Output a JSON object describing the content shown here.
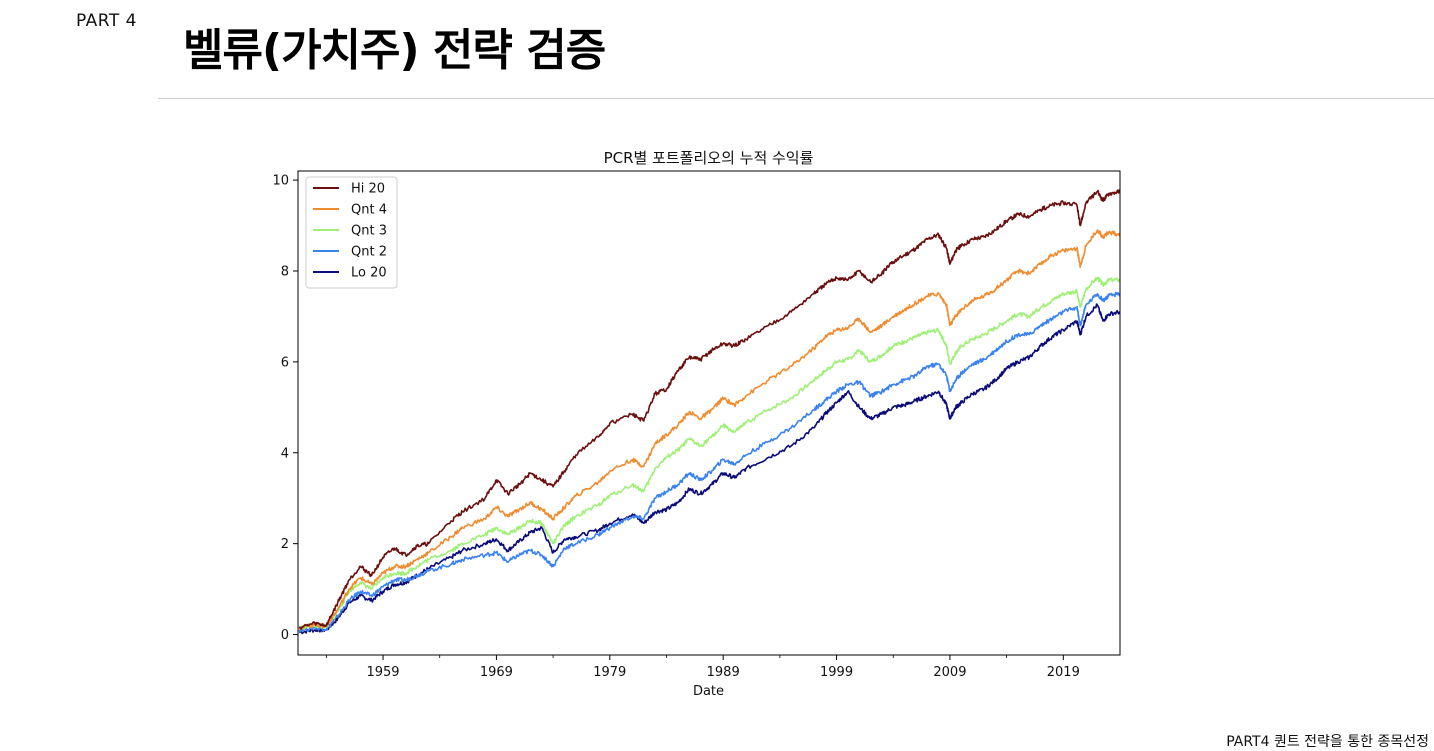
{
  "header": {
    "part": "PART 4",
    "title": "벨류(가치주) 전략 검증"
  },
  "footer": {
    "text": "PART4 퀀트 전략을 통한 종목선정"
  },
  "chart_data": {
    "type": "line",
    "title": "PCR별 포트폴리오의 누적 수익률",
    "xlabel": "Date",
    "ylabel": "",
    "xlim": [
      1951.5,
      2024.0
    ],
    "ylim": [
      -0.45,
      10.2
    ],
    "xticks": [
      "1959",
      "1969",
      "1979",
      "1989",
      "1999",
      "2009",
      "2019"
    ],
    "yticks": [
      "0",
      "2",
      "4",
      "6",
      "8",
      "10"
    ],
    "legend_position": "top-left",
    "grid": false,
    "series": [
      {
        "name": "Hi 20",
        "color": "#6b0e0e",
        "x": [
          1951.6,
          1953,
          1954,
          1955,
          1956,
          1957,
          1958,
          1959,
          1960,
          1961,
          1962,
          1963,
          1965,
          1966,
          1968,
          1969,
          1970,
          1971,
          1972,
          1973,
          1974,
          1975,
          1976,
          1978,
          1979,
          1981,
          1982,
          1983,
          1984,
          1985,
          1986,
          1987,
          1988,
          1989,
          1990,
          1991,
          1993,
          1995,
          1997,
          1998,
          1999,
          2000,
          2001,
          2002,
          2003,
          2004,
          2005,
          2006,
          2007,
          2008,
          2008.7,
          2009,
          2009.5,
          2010,
          2011,
          2012,
          2013,
          2014,
          2015,
          2016,
          2017,
          2018,
          2019,
          2020.2,
          2020.5,
          2021,
          2022,
          2022.5,
          2023,
          2024
        ],
        "values": [
          0.15,
          0.25,
          0.2,
          0.7,
          1.2,
          1.5,
          1.3,
          1.7,
          1.9,
          1.75,
          1.95,
          2.0,
          2.5,
          2.7,
          3.0,
          3.4,
          3.1,
          3.3,
          3.55,
          3.4,
          3.25,
          3.6,
          3.95,
          4.35,
          4.65,
          4.85,
          4.7,
          5.3,
          5.4,
          5.8,
          6.1,
          6.05,
          6.25,
          6.4,
          6.35,
          6.5,
          6.8,
          7.1,
          7.5,
          7.7,
          7.85,
          7.8,
          8.0,
          7.75,
          7.95,
          8.2,
          8.35,
          8.5,
          8.7,
          8.8,
          8.5,
          8.15,
          8.45,
          8.55,
          8.7,
          8.75,
          8.9,
          9.1,
          9.25,
          9.2,
          9.35,
          9.45,
          9.5,
          9.45,
          9.0,
          9.5,
          9.75,
          9.55,
          9.7,
          9.75
        ]
      },
      {
        "name": "Qnt 4",
        "color": "#f08c30",
        "x": [
          1951.6,
          1953,
          1954,
          1955,
          1956,
          1957,
          1958,
          1959,
          1960,
          1961,
          1962,
          1963,
          1965,
          1966,
          1968,
          1969,
          1970,
          1971,
          1972,
          1973,
          1974,
          1975,
          1976,
          1978,
          1979,
          1981,
          1982,
          1983,
          1984,
          1985,
          1986,
          1987,
          1988,
          1989,
          1990,
          1991,
          1993,
          1995,
          1997,
          1998,
          1999,
          2000,
          2001,
          2002,
          2003,
          2004,
          2005,
          2006,
          2007,
          2008,
          2008.7,
          2009,
          2009.5,
          2010,
          2011,
          2012,
          2013,
          2014,
          2015,
          2016,
          2017,
          2018,
          2019,
          2020.2,
          2020.5,
          2021,
          2022,
          2022.5,
          2023,
          2024
        ],
        "values": [
          0.15,
          0.22,
          0.18,
          0.55,
          1.0,
          1.25,
          1.1,
          1.35,
          1.5,
          1.5,
          1.65,
          1.8,
          2.15,
          2.35,
          2.55,
          2.8,
          2.6,
          2.75,
          2.9,
          2.75,
          2.55,
          2.8,
          3.05,
          3.35,
          3.6,
          3.85,
          3.7,
          4.2,
          4.4,
          4.6,
          4.9,
          4.75,
          4.95,
          5.2,
          5.05,
          5.25,
          5.6,
          5.9,
          6.3,
          6.55,
          6.7,
          6.75,
          6.95,
          6.65,
          6.8,
          7.0,
          7.15,
          7.3,
          7.45,
          7.5,
          7.25,
          6.8,
          7.0,
          7.15,
          7.35,
          7.45,
          7.6,
          7.8,
          8.0,
          7.95,
          8.15,
          8.35,
          8.45,
          8.5,
          8.1,
          8.55,
          8.9,
          8.75,
          8.85,
          8.8
        ]
      },
      {
        "name": "Qnt 3",
        "color": "#a0f078",
        "x": [
          1951.6,
          1953,
          1954,
          1955,
          1956,
          1957,
          1958,
          1959,
          1960,
          1961,
          1962,
          1963,
          1965,
          1966,
          1968,
          1969,
          1970,
          1971,
          1972,
          1973,
          1974,
          1975,
          1976,
          1978,
          1979,
          1981,
          1982,
          1983,
          1984,
          1985,
          1986,
          1987,
          1988,
          1989,
          1990,
          1991,
          1993,
          1995,
          1997,
          1998,
          1999,
          2000,
          2001,
          2002,
          2003,
          2004,
          2005,
          2006,
          2007,
          2008,
          2008.7,
          2009,
          2009.5,
          2010,
          2011,
          2012,
          2013,
          2014,
          2015,
          2016,
          2017,
          2018,
          2019,
          2020.2,
          2020.5,
          2021,
          2022,
          2022.5,
          2023,
          2024
        ],
        "values": [
          0.15,
          0.2,
          0.16,
          0.5,
          0.95,
          1.15,
          1.0,
          1.25,
          1.35,
          1.35,
          1.5,
          1.65,
          1.85,
          2.0,
          2.2,
          2.35,
          2.2,
          2.35,
          2.5,
          2.45,
          2.0,
          2.4,
          2.6,
          2.85,
          3.05,
          3.3,
          3.15,
          3.65,
          3.9,
          4.05,
          4.3,
          4.15,
          4.35,
          4.6,
          4.45,
          4.65,
          4.95,
          5.2,
          5.6,
          5.8,
          6.0,
          6.05,
          6.25,
          6.0,
          6.15,
          6.35,
          6.45,
          6.55,
          6.65,
          6.7,
          6.35,
          5.95,
          6.2,
          6.35,
          6.5,
          6.6,
          6.75,
          6.9,
          7.05,
          7.0,
          7.2,
          7.35,
          7.5,
          7.55,
          7.2,
          7.6,
          7.85,
          7.7,
          7.8,
          7.8
        ]
      },
      {
        "name": "Qnt 2",
        "color": "#3a82f0",
        "x": [
          1951.6,
          1953,
          1954,
          1955,
          1956,
          1957,
          1958,
          1959,
          1960,
          1961,
          1962,
          1963,
          1965,
          1966,
          1968,
          1969,
          1970,
          1971,
          1972,
          1973,
          1974,
          1975,
          1976,
          1978,
          1979,
          1981,
          1982,
          1983,
          1984,
          1985,
          1986,
          1987,
          1988,
          1989,
          1990,
          1991,
          1993,
          1995,
          1997,
          1998,
          1999,
          2000,
          2001,
          2002,
          2003,
          2004,
          2005,
          2006,
          2007,
          2008,
          2008.7,
          2009,
          2009.5,
          2010,
          2011,
          2012,
          2013,
          2014,
          2015,
          2016,
          2017,
          2018,
          2019,
          2020.2,
          2020.5,
          2021,
          2022,
          2022.5,
          2023,
          2024
        ],
        "values": [
          0.1,
          0.15,
          0.12,
          0.4,
          0.75,
          0.95,
          0.85,
          1.05,
          1.2,
          1.2,
          1.3,
          1.4,
          1.55,
          1.65,
          1.75,
          1.8,
          1.6,
          1.75,
          1.85,
          1.75,
          1.5,
          1.9,
          2.0,
          2.2,
          2.35,
          2.6,
          2.55,
          3.0,
          3.15,
          3.3,
          3.55,
          3.4,
          3.6,
          3.85,
          3.75,
          3.95,
          4.25,
          4.55,
          4.95,
          5.15,
          5.35,
          5.5,
          5.55,
          5.25,
          5.35,
          5.5,
          5.6,
          5.7,
          5.9,
          5.95,
          5.7,
          5.35,
          5.6,
          5.75,
          5.95,
          6.05,
          6.25,
          6.45,
          6.6,
          6.6,
          6.8,
          6.95,
          7.1,
          7.2,
          6.8,
          7.25,
          7.5,
          7.35,
          7.45,
          7.5
        ]
      },
      {
        "name": "Lo 20",
        "color": "#0a0a78",
        "x": [
          1951.6,
          1953,
          1954,
          1955,
          1956,
          1957,
          1958,
          1959,
          1960,
          1961,
          1962,
          1963,
          1965,
          1966,
          1968,
          1969,
          1970,
          1971,
          1972,
          1973,
          1974,
          1975,
          1976,
          1978,
          1979,
          1981,
          1982,
          1983,
          1984,
          1985,
          1986,
          1987,
          1988,
          1989,
          1990,
          1991,
          1993,
          1995,
          1997,
          1998,
          1999,
          2000,
          2001,
          2002,
          2003,
          2004,
          2005,
          2006,
          2007,
          2008,
          2008.7,
          2009,
          2009.5,
          2010,
          2011,
          2012,
          2013,
          2014,
          2015,
          2016,
          2017,
          2018,
          2019,
          2020.2,
          2020.5,
          2021,
          2022,
          2022.5,
          2023,
          2024
        ],
        "values": [
          0.05,
          0.1,
          0.1,
          0.35,
          0.7,
          0.85,
          0.75,
          0.95,
          1.1,
          1.15,
          1.3,
          1.45,
          1.7,
          1.85,
          2.0,
          2.1,
          1.85,
          2.05,
          2.25,
          2.35,
          1.8,
          2.1,
          2.15,
          2.3,
          2.45,
          2.65,
          2.45,
          2.7,
          2.75,
          2.9,
          3.2,
          3.1,
          3.3,
          3.55,
          3.45,
          3.65,
          3.9,
          4.15,
          4.55,
          4.85,
          5.1,
          5.35,
          5.0,
          4.75,
          4.85,
          5.0,
          5.05,
          5.15,
          5.25,
          5.35,
          5.05,
          4.75,
          5.0,
          5.1,
          5.3,
          5.4,
          5.6,
          5.85,
          6.0,
          6.1,
          6.35,
          6.55,
          6.7,
          6.9,
          6.6,
          7.0,
          7.25,
          6.9,
          7.05,
          7.1
        ]
      }
    ]
  }
}
